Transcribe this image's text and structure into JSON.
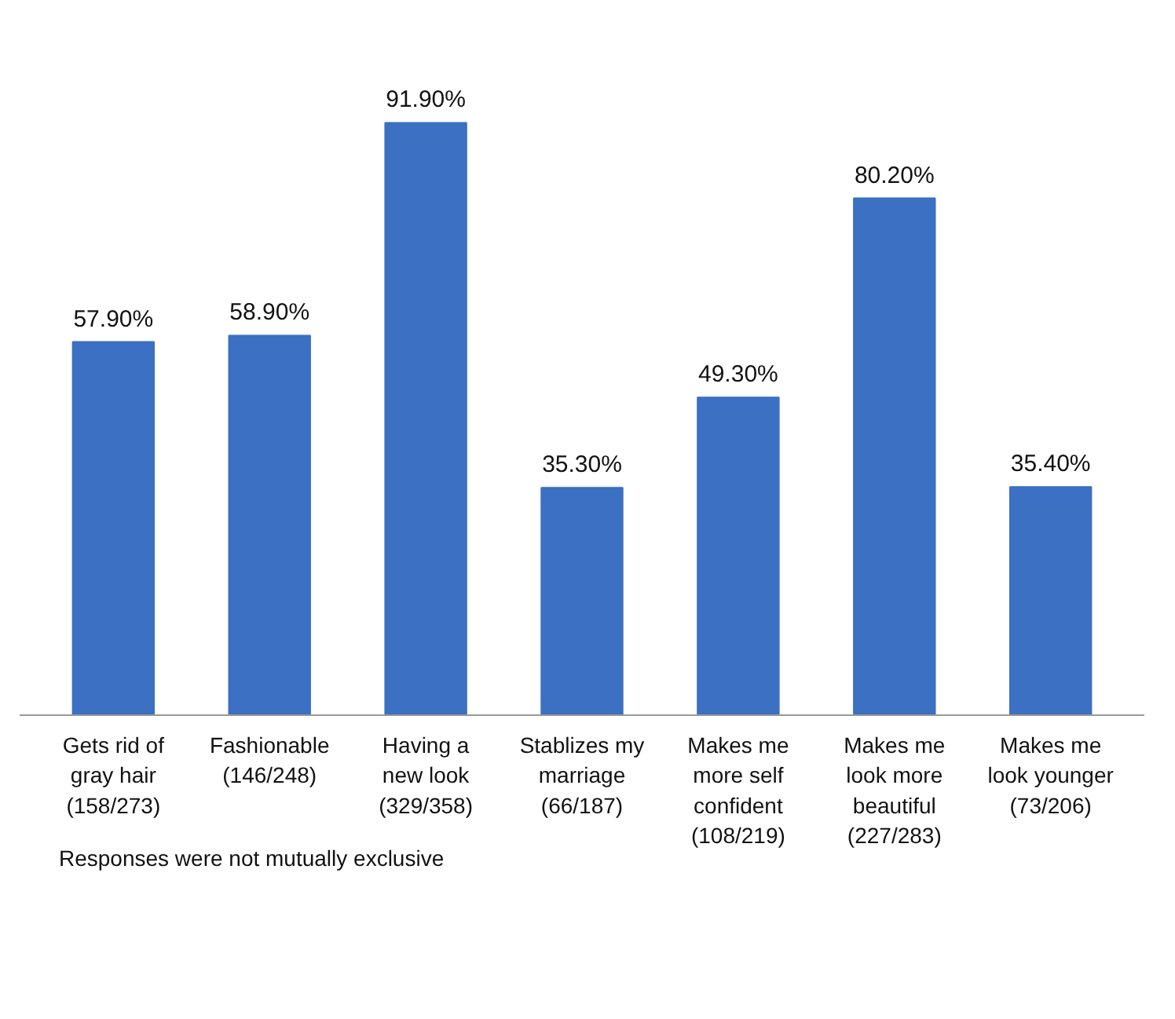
{
  "chart_data": {
    "type": "bar",
    "categories": [
      "Gets rid of\ngray hair\n(158/273)",
      "Fashionable\n(146/248)",
      "Having a\nnew look\n(329/358)",
      "Stablizes my\nmarriage\n(66/187)",
      "Makes me\nmore self\nconfident\n(108/219)",
      "Makes me\nlook more\nbeautiful\n(227/283)",
      "Makes me\nlook younger\n(73/206)"
    ],
    "values": [
      57.9,
      58.9,
      91.9,
      35.3,
      49.3,
      80.2,
      35.4
    ],
    "value_labels": [
      "57.90%",
      "58.90%",
      "91.90%",
      "35.30%",
      "49.30%",
      "80.20%",
      "35.40%"
    ],
    "color": "#3b70c2",
    "grid": false,
    "annotations": [
      "Responses were not mutually exclusive"
    ]
  }
}
